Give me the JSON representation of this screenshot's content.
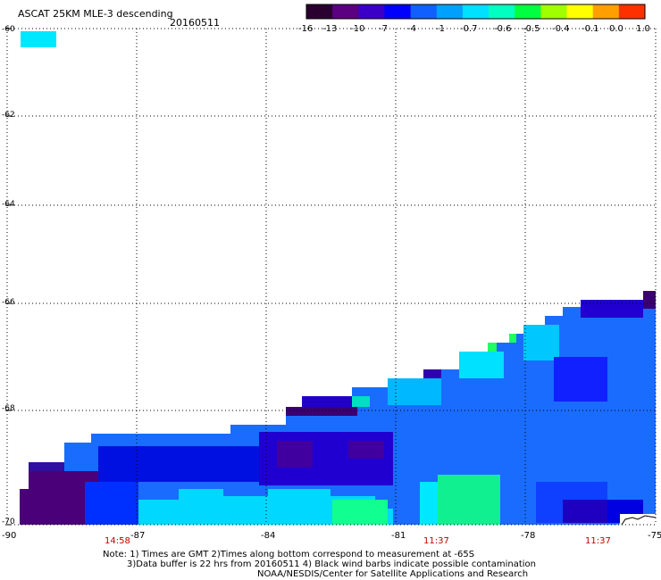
{
  "title": "ASCAT 25KM MLE-3 descending",
  "date": "20160511",
  "colorbar": {
    "ticks": [
      "-16",
      "-13",
      "-10",
      "-7",
      "-4",
      "-1",
      "-0.7",
      "-0.6",
      "-0.5",
      "-0.4",
      "-0.1",
      "0.0",
      "1.0"
    ],
    "colors": [
      "#2a0030",
      "#5a0080",
      "#3a00c8",
      "#0000ff",
      "#1060ff",
      "#00a0ff",
      "#00e0ff",
      "#00ffc0",
      "#00ff40",
      "#a0ff00",
      "#ffff00",
      "#ffa000",
      "#ff3000"
    ]
  },
  "lat_labels": [
    "-60",
    "-62",
    "-64",
    "-66",
    "-68",
    "-70"
  ],
  "lon_labels": [
    "-90",
    "-87",
    "-84",
    "-81",
    "-78",
    "-75"
  ],
  "times": [
    "14:58",
    "11:37",
    "11:37"
  ],
  "notes": [
    "Note: 1) Times are GMT 2)Times along bottom correspond to measurement at -65S",
    "3)Data buffer is 22 hrs from 20160511 4) Black wind barbs indicate possible contamination",
    "NOAA/NESDIS/Center for Satellite Applications and Research"
  ],
  "colors": {
    "grid": "#000000",
    "deep_purple": "#4a0078",
    "blue": "#0000ff",
    "mid_blue": "#1a6cff",
    "cyan": "#00e0ff",
    "green": "#20ff80"
  }
}
